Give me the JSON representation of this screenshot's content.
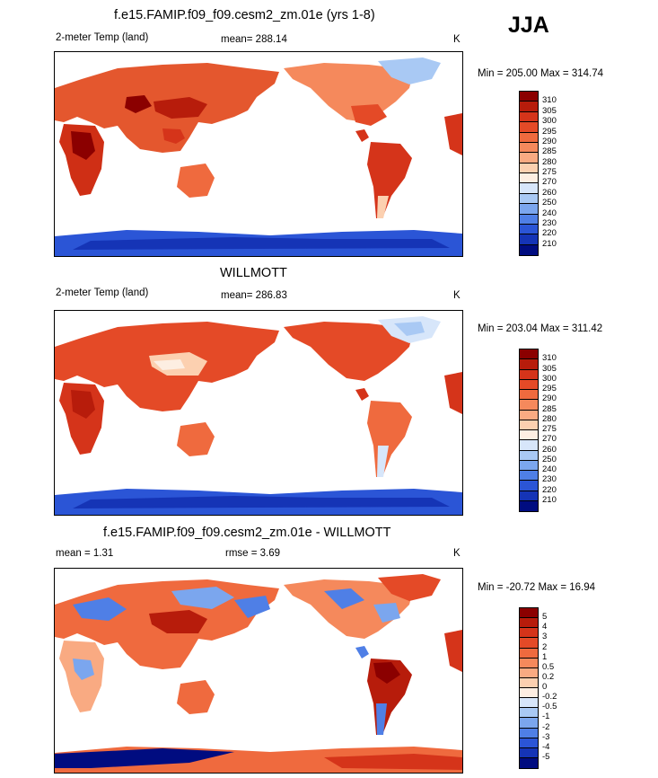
{
  "season": "JJA",
  "units": "K",
  "panels": [
    {
      "title": "f.e15.FAMIP.f09_f09.cesm2_zm.01e (yrs 1-8)",
      "left_label": "2-meter Temp (land)",
      "center_label": "mean= 288.14",
      "right_label": "K",
      "minmax": "Min = 205.00 Max = 314.74",
      "scale": "abs"
    },
    {
      "title": "WILLMOTT",
      "left_label": "2-meter Temp (land)",
      "center_label": "mean= 286.83",
      "right_label": "K",
      "minmax": "Min = 203.04 Max = 311.42",
      "scale": "abs"
    },
    {
      "title": "f.e15.FAMIP.f09_f09.cesm2_zm.01e - WILLMOTT",
      "left_label": "mean =   1.31",
      "center_label": "rmse =    3.69",
      "right_label": "K",
      "minmax": "Min = -20.72 Max =  16.94",
      "scale": "diff"
    }
  ],
  "colorbars": {
    "abs": {
      "labels": [
        "310",
        "305",
        "300",
        "295",
        "290",
        "285",
        "280",
        "275",
        "270",
        "260",
        "250",
        "240",
        "230",
        "220",
        "210"
      ],
      "colors": [
        "#8b0000",
        "#b71c0b",
        "#d5341a",
        "#e44a27",
        "#ef6a3e",
        "#f5895c",
        "#f9aa82",
        "#fcd0b0",
        "#fdeee2",
        "#d7e6fa",
        "#a9c9f4",
        "#7ba6ee",
        "#4f7fe6",
        "#2b55d6",
        "#1534b6",
        "#000c80"
      ]
    },
    "diff": {
      "labels": [
        "5",
        "4",
        "3",
        "2",
        "1",
        "0.5",
        "0.2",
        "0",
        "-0.2",
        "-0.5",
        "-1",
        "-2",
        "-3",
        "-4",
        "-5"
      ],
      "colors": [
        "#8b0000",
        "#b71c0b",
        "#d5341a",
        "#e44a27",
        "#ef6a3e",
        "#f5895c",
        "#f9aa82",
        "#fcd0b0",
        "#fdeee2",
        "#d7e6fa",
        "#a9c9f4",
        "#7ba6ee",
        "#4f7fe6",
        "#2b55d6",
        "#1534b6",
        "#000c80"
      ]
    }
  }
}
